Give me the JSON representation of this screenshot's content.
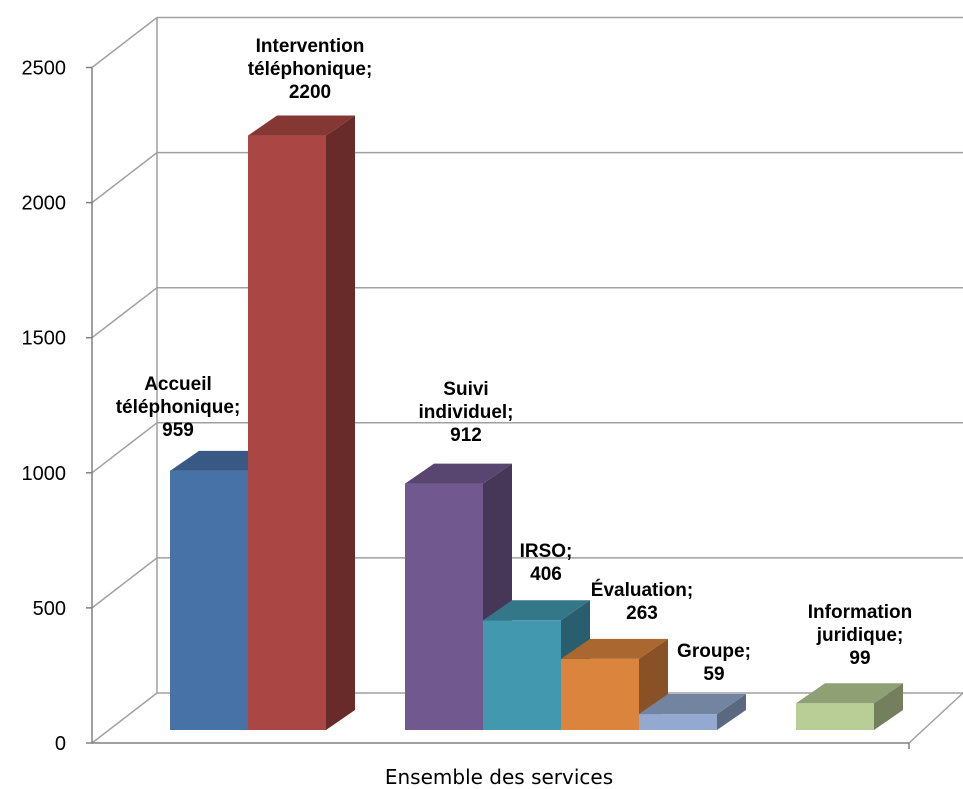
{
  "chart_data": {
    "type": "bar",
    "title": "",
    "xlabel": "Ensemble des services",
    "ylabel": "",
    "ylim": [
      0,
      2500
    ],
    "yticks": [
      0,
      500,
      1000,
      1500,
      2000,
      2500
    ],
    "grid": true,
    "legend": "none",
    "categories": [
      "Ensemble des services"
    ],
    "series": [
      {
        "name": "Accueil téléphonique",
        "value": 959,
        "label_lines": [
          "Accueil",
          "téléphonique;",
          "959"
        ],
        "color": "#4672A8"
      },
      {
        "name": "Intervention téléphonique",
        "value": 2200,
        "label_lines": [
          "Intervention",
          "téléphonique;",
          "2200"
        ],
        "color": "#AA4643"
      },
      {
        "name": "Suivi individuel",
        "value": 912,
        "label_lines": [
          "Suivi",
          "individuel;",
          "912"
        ],
        "color": "#71588F"
      },
      {
        "name": "IRSO",
        "value": 406,
        "label_lines": [
          "IRSO;",
          "406"
        ],
        "color": "#4198AF"
      },
      {
        "name": "Évaluation",
        "value": 263,
        "label_lines": [
          "Évaluation;",
          "263"
        ],
        "color": "#DB843D"
      },
      {
        "name": "Groupe",
        "value": 59,
        "label_lines": [
          "Groupe;",
          "59"
        ],
        "color": "#93A9CF"
      },
      {
        "name": "Information juridique",
        "value": 99,
        "label_lines": [
          "Information",
          "juridique;",
          "99"
        ],
        "color": "#B9CD96"
      }
    ]
  }
}
